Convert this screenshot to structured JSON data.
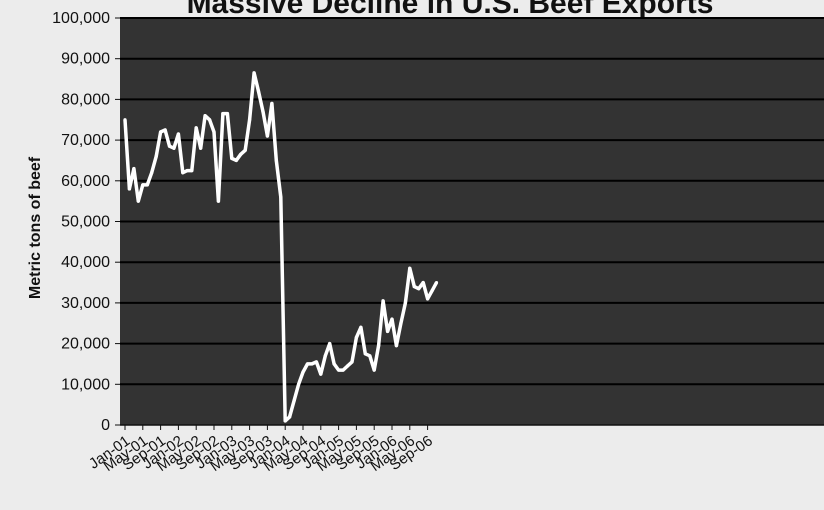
{
  "chart_data": {
    "type": "line",
    "title": "Massive Decline in U.S. Beef Exports",
    "xlabel": "",
    "ylabel": "Metric tons of beef",
    "ylim": [
      0,
      100000
    ],
    "y_ticks": [
      "0",
      "10,000",
      "20,000",
      "30,000",
      "40,000",
      "50,000",
      "60,000",
      "70,000",
      "80,000",
      "90,000",
      "100,000"
    ],
    "x_tick_labels": [
      "Jan-01",
      "May-01",
      "Sep-01",
      "Jan-02",
      "May-02",
      "Sep-02",
      "Jan-03",
      "May-03",
      "Sep-03",
      "Jan-04",
      "May-04",
      "Sep-04",
      "Jan-05",
      "May-05",
      "Sep-05",
      "Jan-06",
      "May-06",
      "Sep-06"
    ],
    "grid": true,
    "colors": {
      "plot_bg": "#333333",
      "line": "#ffffff",
      "grid": "#000000",
      "page_bg": "#ececec"
    },
    "series": [
      {
        "x": [
          "Jan-01",
          "Feb-01",
          "Mar-01",
          "Apr-01",
          "May-01",
          "Jun-01",
          "Jul-01",
          "Aug-01",
          "Sep-01",
          "Oct-01",
          "Nov-01",
          "Dec-01",
          "Jan-02",
          "Feb-02",
          "Mar-02",
          "Apr-02",
          "May-02",
          "Jun-02",
          "Jul-02",
          "Aug-02",
          "Sep-02",
          "Oct-02",
          "Nov-02",
          "Dec-02",
          "Jan-03",
          "Feb-03",
          "Mar-03",
          "Apr-03",
          "May-03",
          "Jun-03",
          "Jul-03",
          "Aug-03",
          "Sep-03",
          "Oct-03",
          "Nov-03",
          "Dec-03",
          "Jan-04",
          "Feb-04",
          "Mar-04",
          "Apr-04",
          "May-04",
          "Jun-04",
          "Jul-04",
          "Aug-04",
          "Sep-04",
          "Oct-04",
          "Nov-04",
          "Dec-04",
          "Jan-05",
          "Feb-05",
          "Mar-05",
          "Apr-05",
          "May-05",
          "Jun-05",
          "Jul-05",
          "Aug-05",
          "Sep-05",
          "Oct-05",
          "Nov-05",
          "Dec-05",
          "Jan-06",
          "Feb-06",
          "Mar-06",
          "Apr-06",
          "May-06",
          "Jun-06",
          "Jul-06",
          "Aug-06",
          "Sep-06",
          "Oct-06",
          "Nov-06"
        ],
        "values": [
          75000,
          58000,
          63000,
          55000,
          59000,
          59000,
          62000,
          66000,
          72000,
          72500,
          68500,
          68000,
          71500,
          62000,
          62500,
          62500,
          73000,
          68000,
          76000,
          75000,
          72000,
          55000,
          76500,
          76500,
          65500,
          65000,
          66500,
          67500,
          75000,
          86500,
          82000,
          77000,
          71000,
          79000,
          65000,
          56000,
          1000,
          2000,
          6000,
          10000,
          13000,
          15000,
          15000,
          15500,
          12500,
          17000,
          20000,
          15000,
          13500,
          13500,
          14500,
          15500,
          21500,
          24000,
          17500,
          17000,
          13500,
          19500,
          30500,
          23000,
          26000,
          19500,
          25000,
          30000,
          38500,
          34000,
          33500,
          35000,
          31000,
          33000,
          35000
        ]
      }
    ]
  }
}
